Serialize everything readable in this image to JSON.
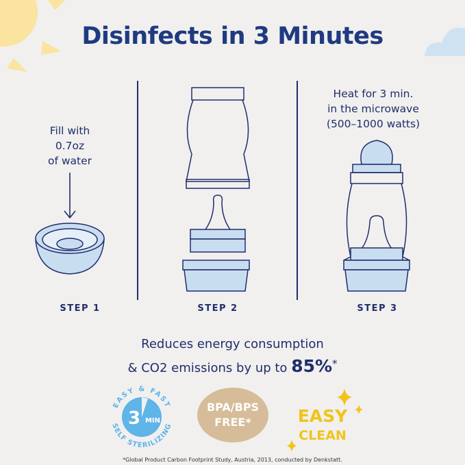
{
  "title": "Disinfects in 3 Minutes",
  "steps": [
    {
      "label": "STEP 1",
      "instruction": [
        "Fill with",
        "0.7oz",
        "of water"
      ]
    },
    {
      "label": "STEP 2"
    },
    {
      "label": "STEP 3",
      "instruction": [
        "Heat for 3 min.",
        "in the microwave",
        "(500–1000 watts)"
      ]
    }
  ],
  "energy": {
    "line1": "Reduces energy consumption",
    "line2": "& CO2 emissions by up to",
    "highlight": "85%",
    "mark": "*"
  },
  "badges": {
    "sterilizing": {
      "top": "EASY & FAST",
      "bottom": "SELF STERILIZING",
      "center_num": "3",
      "center_unit": "MIN"
    },
    "bpa": {
      "line1": "BPA/BPS",
      "line2": "FREE*"
    },
    "clean": {
      "line1": "EASY",
      "line2": "CLEAN"
    }
  },
  "footnote": "*Global Product Carbon Footprint Study, Austria, 2013, conducted by Denkstatt.",
  "colors": {
    "navy": "#1f2d6b",
    "light_blue": "#c9ddf1",
    "badge_blue": "#5fb4e8",
    "tan": "#d6bc98",
    "yellow": "#f0c419",
    "sun": "#fbe3a0",
    "cloud": "#cfe2f1"
  }
}
